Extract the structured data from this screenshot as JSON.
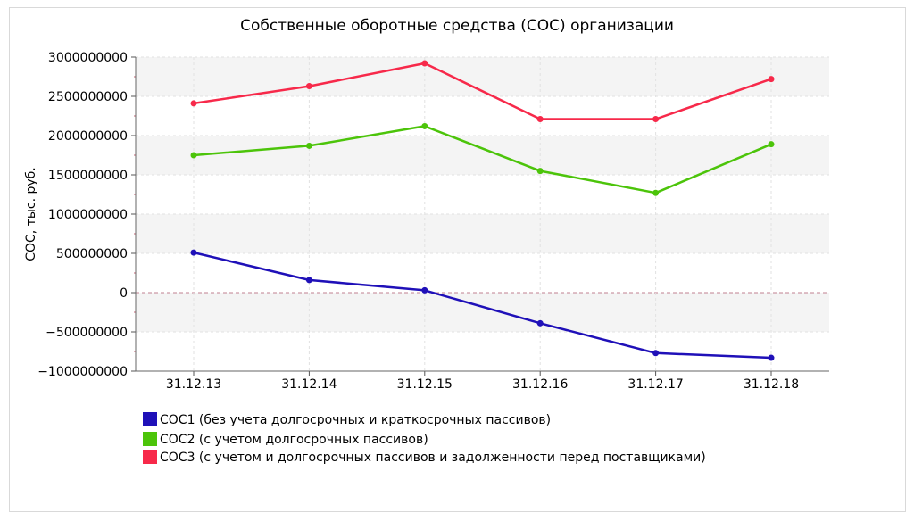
{
  "chart_data": {
    "type": "line",
    "title": "Собственные оборотные средства (СОС) организации",
    "xlabel": "",
    "ylabel": "СОС, тыс. руб.",
    "categories": [
      "31.12.13",
      "31.12.14",
      "31.12.15",
      "31.12.16",
      "31.12.17",
      "31.12.18"
    ],
    "ylim": [
      -1000000000,
      3000000000
    ],
    "yticks": [
      3000000000,
      2500000000,
      2000000000,
      1500000000,
      1000000000,
      500000000,
      0,
      -500000000,
      -1000000000
    ],
    "ytick_labels": [
      "3000000000",
      "2500000000",
      "2000000000",
      "1500000000",
      "1000000000",
      "500000000",
      "0",
      "−500000000",
      "−1000000000"
    ],
    "grid": true,
    "legend_position": "bottom-left",
    "series": [
      {
        "name": "СОС1 (без учета долгосрочных и краткосрочных пассивов)",
        "color": "#1f10b8",
        "values": [
          510000000,
          160000000,
          30000000,
          -390000000,
          -770000000,
          -830000000
        ]
      },
      {
        "name": "СОС2 (с учетом долгосрочных пассивов)",
        "color": "#4cc40a",
        "values": [
          1750000000,
          1870000000,
          2120000000,
          1550000000,
          1270000000,
          1890000000
        ]
      },
      {
        "name": "СОС3 (с учетом и долгосрочных пассивов и задолженности перед поставщиками)",
        "color": "#f7294a",
        "values": [
          2410000000,
          2630000000,
          2920000000,
          2210000000,
          2210000000,
          2720000000
        ]
      }
    ]
  }
}
